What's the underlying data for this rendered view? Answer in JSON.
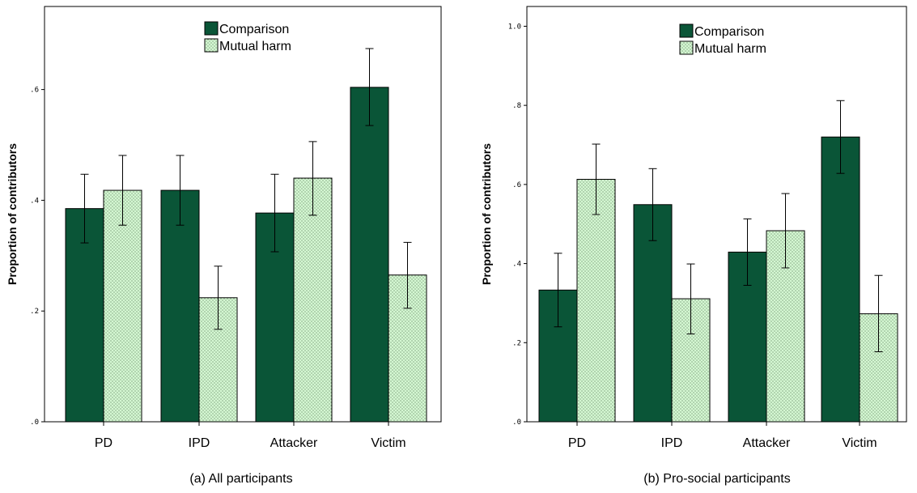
{
  "colors": {
    "comparison": "#0a5537",
    "mutual_harm": "#d4f7d2",
    "dots": "#2a4a2a"
  },
  "chart_data": [
    {
      "type": "bar",
      "title": "",
      "caption": "(a) All participants",
      "xlabel": "",
      "ylabel": "Proportion of contributors",
      "ylim": [
        0,
        0.75
      ],
      "yticks": [
        0,
        0.2,
        0.4,
        0.6
      ],
      "ytick_labels": [
        ".0",
        ".2",
        ".4",
        ".6"
      ],
      "categories": [
        "PD",
        "IPD",
        "Attacker",
        "Victim"
      ],
      "legend": "top-center",
      "series": [
        {
          "name": "Comparison",
          "values": [
            0.385,
            0.418,
            0.377,
            0.604
          ],
          "error_low": [
            0.323,
            0.355,
            0.307,
            0.535
          ],
          "error_high": [
            0.447,
            0.481,
            0.447,
            0.674
          ]
        },
        {
          "name": "Mutual harm",
          "values": [
            0.418,
            0.224,
            0.44,
            0.265
          ],
          "error_low": [
            0.355,
            0.167,
            0.373,
            0.205
          ],
          "error_high": [
            0.481,
            0.281,
            0.506,
            0.324
          ]
        }
      ]
    },
    {
      "type": "bar",
      "title": "",
      "caption": "(b) Pro-social participants",
      "xlabel": "",
      "ylabel": "Proportion of contributors",
      "ylim": [
        0,
        1.05
      ],
      "yticks": [
        0,
        0.2,
        0.4,
        0.6,
        0.8,
        1.0
      ],
      "ytick_labels": [
        ".0",
        ".2",
        ".4",
        ".6",
        ".8",
        "1.0"
      ],
      "categories": [
        "PD",
        "IPD",
        "Attacker",
        "Victim"
      ],
      "legend": "top-center",
      "series": [
        {
          "name": "Comparison",
          "values": [
            0.333,
            0.549,
            0.429,
            0.72
          ],
          "error_low": [
            0.24,
            0.458,
            0.345,
            0.628
          ],
          "error_high": [
            0.426,
            0.64,
            0.513,
            0.812
          ]
        },
        {
          "name": "Mutual harm",
          "values": [
            0.613,
            0.311,
            0.483,
            0.273
          ],
          "error_low": [
            0.524,
            0.222,
            0.389,
            0.177
          ],
          "error_high": [
            0.702,
            0.399,
            0.577,
            0.37
          ]
        }
      ]
    }
  ]
}
